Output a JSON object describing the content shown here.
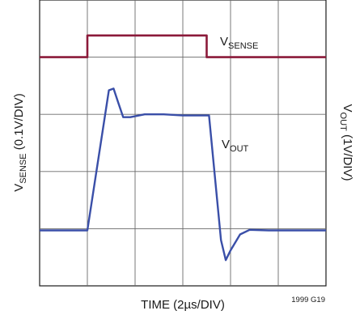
{
  "chart_data": {
    "type": "line",
    "xlabel": "TIME (2µs/DIV)",
    "ylabel_left": "V",
    "ylabel_left_sub": "SENSE",
    "ylabel_left_rest": " (0.1V/DIV)",
    "ylabel_right": "V",
    "ylabel_right_sub": "OUT",
    "ylabel_right_rest": " (1V/DIV)",
    "figure_id": "1999 G19",
    "divisions": {
      "x": 6,
      "y": 5
    },
    "xlim": [
      0,
      6
    ],
    "ylim": [
      0,
      5
    ],
    "grid": true,
    "series": [
      {
        "name": "V",
        "name_sub": "SENSE",
        "color": "#8b1a3a",
        "x": [
          0,
          1.0,
          1.0,
          3.5,
          3.5,
          6.0
        ],
        "y": [
          4.0,
          4.0,
          4.38,
          4.38,
          4.0,
          4.0
        ]
      },
      {
        "name": "V",
        "name_sub": "OUT",
        "color": "#3a4fa8",
        "x": [
          0,
          1.0,
          1.45,
          1.55,
          1.65,
          1.75,
          1.9,
          2.2,
          2.6,
          3.0,
          3.35,
          3.55,
          3.8,
          3.9,
          4.0,
          4.2,
          4.4,
          4.8,
          5.5,
          6.0
        ],
        "y": [
          0.97,
          0.97,
          3.42,
          3.45,
          3.2,
          2.95,
          2.95,
          3.0,
          3.0,
          2.98,
          2.98,
          2.98,
          0.8,
          0.45,
          0.62,
          0.9,
          0.98,
          0.97,
          0.97,
          0.97
        ]
      }
    ]
  }
}
